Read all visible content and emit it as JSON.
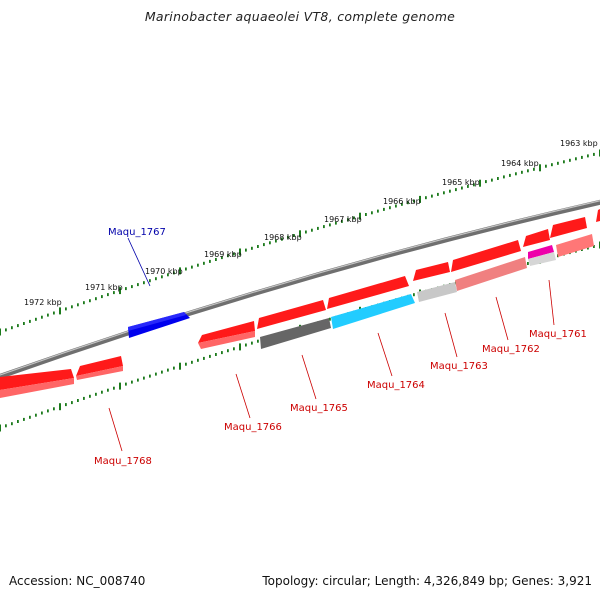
{
  "title": "Marinobacter aquaeolei VT8, complete genome",
  "footer": {
    "accession": "Accession: NC_008740",
    "stats": "Topology: circular; Length: 4,326,849 bp; Genes: 3,921"
  },
  "colors": {
    "backbone": "#7a7a7a",
    "tick": "#1c7a1c",
    "gene_red": "#ff0000",
    "gene_blue": "#0000ee",
    "label_red": "#cc0000",
    "label_blue": "#0000aa"
  },
  "scale_labels": [
    "1963 kbp",
    "1964 kbp",
    "1965 kbp",
    "1966 kbp",
    "1967 kbp",
    "1968 kbp",
    "1969 kbp",
    "1970 kbp",
    "1971 kbp",
    "1972 kbp"
  ],
  "genes": [
    {
      "name": "Maqu_1761",
      "fill": "#ff0000",
      "fill2": "#e8e8e8",
      "lower": "#ff6666",
      "pink": "#ee00aa"
    },
    {
      "name": "Maqu_1762",
      "fill": "#ff0000",
      "lower": "#f08080"
    },
    {
      "name": "Maqu_1763",
      "fill": "#ff0000",
      "lower": "#c8c8c8"
    },
    {
      "name": "Maqu_1764",
      "fill": "#ff0000",
      "lower": "#22ccff"
    },
    {
      "name": "Maqu_1765",
      "fill": "#ff0000",
      "lower": "#666666"
    },
    {
      "name": "Maqu_1766",
      "fill": "#ff0000",
      "lower": "#ff6666"
    },
    {
      "name": "Maqu_1767",
      "fill": "#0000ee"
    },
    {
      "name": "Maqu_1768",
      "fill": "#ff0000",
      "lower": "#ff6666"
    }
  ]
}
